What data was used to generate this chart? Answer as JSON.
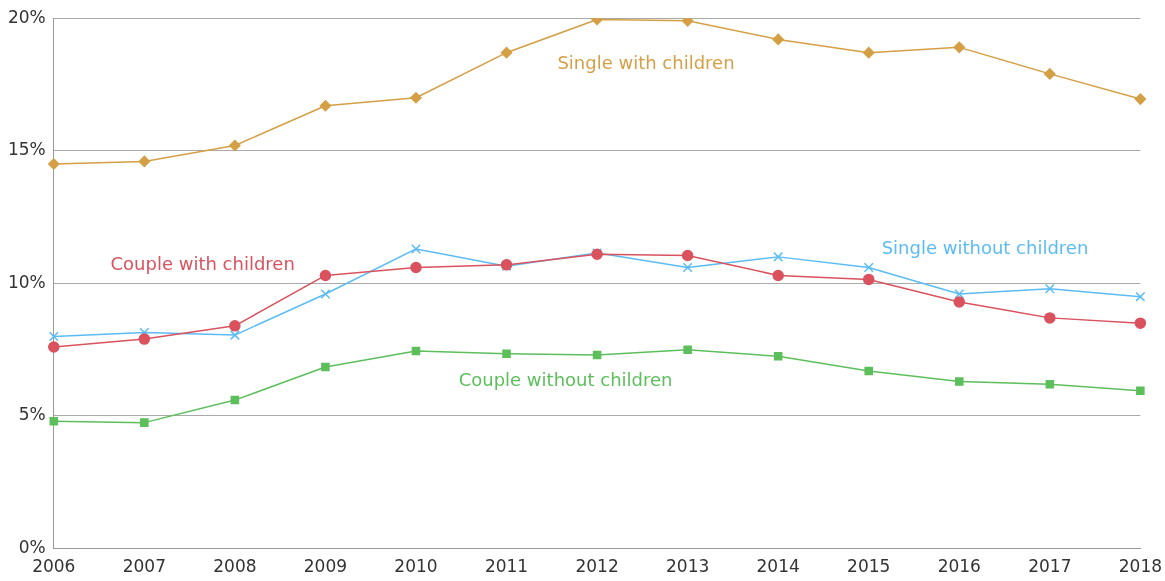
{
  "chart_data": {
    "type": "line",
    "categories": [
      "2006",
      "2007",
      "2008",
      "2009",
      "2010",
      "2011",
      "2012",
      "2013",
      "2014",
      "2015",
      "2016",
      "2017",
      "2018"
    ],
    "series": [
      {
        "name": "Single with children",
        "color": "#d59f45",
        "marker": "diamond",
        "values": [
          14.5,
          14.6,
          15.2,
          16.7,
          17.0,
          18.7,
          19.95,
          19.9,
          19.2,
          18.7,
          18.9,
          17.9,
          16.95
        ]
      },
      {
        "name": "Couple with children",
        "color": "#d9525e",
        "marker": "circle",
        "values": [
          7.6,
          7.9,
          8.4,
          10.3,
          10.6,
          10.7,
          11.1,
          11.05,
          10.3,
          10.15,
          9.3,
          8.7,
          8.5
        ]
      },
      {
        "name": "Single without children",
        "color": "#5bbcf5",
        "marker": "cross",
        "values": [
          8.0,
          8.15,
          8.05,
          9.6,
          11.3,
          10.65,
          11.15,
          10.6,
          11.0,
          10.6,
          9.6,
          9.8,
          9.5
        ]
      },
      {
        "name": "Couple without children",
        "color": "#5cbf5c",
        "marker": "square",
        "values": [
          4.8,
          4.75,
          5.6,
          6.85,
          7.45,
          7.35,
          7.3,
          7.5,
          7.25,
          6.7,
          6.3,
          6.2,
          5.95
        ]
      }
    ],
    "ylim": [
      0,
      20
    ],
    "yticks": [
      {
        "value": 0,
        "label": "0%"
      },
      {
        "value": 5,
        "label": "5%"
      },
      {
        "value": 10,
        "label": "10%"
      },
      {
        "value": 15,
        "label": "15%"
      },
      {
        "value": 20,
        "label": "20%"
      }
    ],
    "grid": "y",
    "legend": false,
    "line_style": "solid"
  }
}
